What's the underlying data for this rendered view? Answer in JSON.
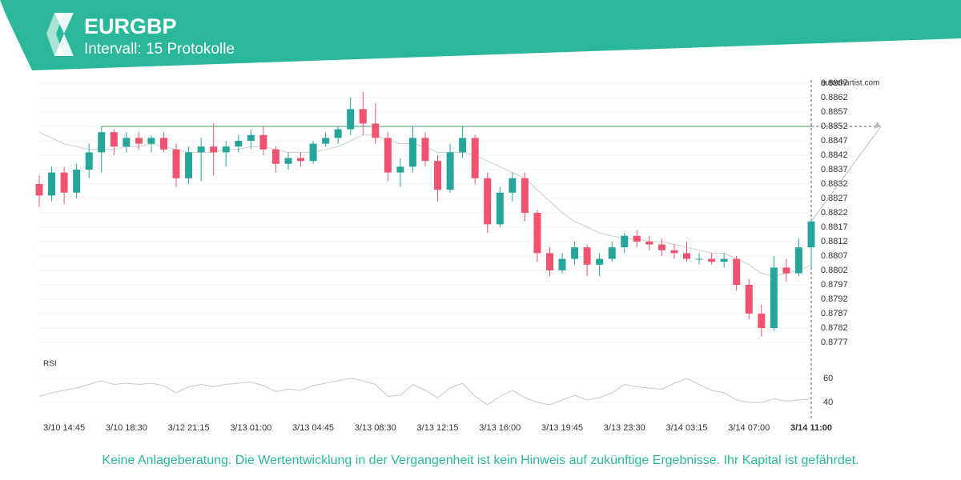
{
  "chart_data": {
    "type": "candlestick",
    "title": "EURGBP",
    "subtitle": "Intervall: 15 Protokolle",
    "brand": "autochartist.com",
    "disclaimer": "Keine Anlageberatung. Die Wertentwicklung in der Vergangenheit ist kein Hinweis auf zukünftige Ergebnisse. Ihr Kapital ist gefährdet.",
    "categories": [
      null,
      null,
      "3/10 14:45",
      null,
      null,
      null,
      null,
      "3/10 18:30",
      null,
      null,
      null,
      null,
      "3/12 21:15",
      null,
      null,
      null,
      null,
      "3/13 01:00",
      null,
      null,
      null,
      null,
      "3/13 04:45",
      null,
      null,
      null,
      null,
      "3/13 08:30",
      null,
      null,
      null,
      null,
      "3/13 12:15",
      null,
      null,
      null,
      null,
      "3/13 16:00",
      null,
      null,
      null,
      null,
      "3/13 19:45",
      null,
      null,
      null,
      null,
      "3/13 23:30",
      null,
      null,
      null,
      null,
      "3/14 03:15",
      null,
      null,
      null,
      null,
      "3/14 07:00",
      null,
      null,
      null,
      null,
      "3/14 11:00"
    ],
    "open": [
      0.8832,
      0.8828,
      0.8836,
      0.8829,
      0.8837,
      0.8843,
      0.885,
      0.8845,
      0.8848,
      0.8846,
      0.8848,
      0.8844,
      0.8834,
      0.8843,
      0.8845,
      0.8843,
      0.8845,
      0.8847,
      0.8849,
      0.8844,
      0.8839,
      0.8841,
      0.884,
      0.8846,
      0.8848,
      0.8851,
      0.8858,
      0.8853,
      0.8848,
      0.8836,
      0.8838,
      0.8848,
      0.884,
      0.883,
      0.8843,
      0.8848,
      0.8834,
      0.8818,
      0.8829,
      0.8834,
      0.8822,
      0.8808,
      0.8802,
      0.8806,
      0.881,
      0.8804,
      0.8806,
      0.881,
      0.8814,
      0.8812,
      0.8811,
      0.8809,
      0.8808,
      0.8806,
      0.8806,
      0.8805,
      0.8806,
      0.8797,
      0.8787,
      0.8782,
      0.8803,
      0.8801,
      0.881
    ],
    "high": [
      0.8835,
      0.8838,
      0.8838,
      0.8839,
      0.8846,
      0.8852,
      0.8851,
      0.885,
      0.885,
      0.8849,
      0.885,
      0.8846,
      0.8845,
      0.8848,
      0.8853,
      0.8847,
      0.8849,
      0.8851,
      0.8852,
      0.8845,
      0.8843,
      0.8843,
      0.8847,
      0.885,
      0.8852,
      0.8862,
      0.8864,
      0.886,
      0.885,
      0.8841,
      0.8852,
      0.885,
      0.8842,
      0.8846,
      0.8852,
      0.8849,
      0.8836,
      0.8831,
      0.8836,
      0.8836,
      0.8823,
      0.881,
      0.8808,
      0.8812,
      0.8811,
      0.8808,
      0.8812,
      0.8815,
      0.8816,
      0.8814,
      0.8813,
      0.8811,
      0.8812,
      0.8808,
      0.8808,
      0.8808,
      0.8807,
      0.8799,
      0.879,
      0.8807,
      0.8806,
      0.8813,
      0.882
    ],
    "low": [
      0.8824,
      0.8826,
      0.8825,
      0.8827,
      0.8834,
      0.8836,
      0.8842,
      0.8843,
      0.8844,
      0.8843,
      0.8843,
      0.8831,
      0.8832,
      0.8833,
      0.8835,
      0.8838,
      0.8843,
      0.8844,
      0.8842,
      0.8836,
      0.8837,
      0.8838,
      0.8839,
      0.8845,
      0.8846,
      0.8849,
      0.8849,
      0.8846,
      0.8833,
      0.8831,
      0.8836,
      0.8838,
      0.8826,
      0.8829,
      0.8841,
      0.8832,
      0.8815,
      0.8817,
      0.8826,
      0.8819,
      0.8805,
      0.88,
      0.8801,
      0.8804,
      0.88,
      0.88,
      0.8805,
      0.8808,
      0.881,
      0.8809,
      0.8807,
      0.8806,
      0.8805,
      0.8804,
      0.8804,
      0.8803,
      0.8795,
      0.8785,
      0.8779,
      0.8781,
      0.8798,
      0.88,
      0.8803
    ],
    "close": [
      0.8828,
      0.8836,
      0.8829,
      0.8837,
      0.8843,
      0.885,
      0.8845,
      0.8848,
      0.8846,
      0.8848,
      0.8844,
      0.8834,
      0.8843,
      0.8845,
      0.8843,
      0.8845,
      0.8847,
      0.8849,
      0.8844,
      0.8839,
      0.8841,
      0.884,
      0.8846,
      0.8848,
      0.8851,
      0.8858,
      0.8853,
      0.8848,
      0.8836,
      0.8838,
      0.8848,
      0.884,
      0.883,
      0.8843,
      0.8848,
      0.8834,
      0.8818,
      0.8829,
      0.8834,
      0.8822,
      0.8808,
      0.8802,
      0.8806,
      0.881,
      0.8804,
      0.8806,
      0.881,
      0.8814,
      0.8812,
      0.8811,
      0.8809,
      0.8808,
      0.8806,
      0.8806,
      0.8805,
      0.8806,
      0.8797,
      0.8787,
      0.8782,
      0.8803,
      0.8801,
      0.881,
      0.8819
    ],
    "up_color": "#26a69a",
    "down_color": "#ef5370",
    "moving_average": {
      "color": "#cccccc",
      "values": [
        0.885,
        0.8848,
        0.8846,
        0.8845,
        0.8844,
        0.8844,
        0.8844,
        0.8845,
        0.8845,
        0.8846,
        0.8845,
        0.8844,
        0.8843,
        0.8843,
        0.8843,
        0.8844,
        0.8844,
        0.8845,
        0.8845,
        0.8844,
        0.8843,
        0.8843,
        0.8843,
        0.8844,
        0.8845,
        0.8847,
        0.8849,
        0.8849,
        0.8847,
        0.8846,
        0.8846,
        0.8845,
        0.8843,
        0.8843,
        0.8843,
        0.8842,
        0.884,
        0.8838,
        0.8836,
        0.8834,
        0.883,
        0.8826,
        0.8822,
        0.8819,
        0.8817,
        0.8815,
        0.8814,
        0.8813,
        0.8813,
        0.8812,
        0.8812,
        0.8811,
        0.881,
        0.8809,
        0.8808,
        0.8808,
        0.8806,
        0.8804,
        0.8801,
        0.88,
        0.8801,
        0.8802,
        0.8804
      ]
    },
    "level": 0.8852,
    "level_color": "#7fbf9a",
    "ylim": [
      0.8777,
      0.8867
    ],
    "yticks": [
      0.8867,
      0.8862,
      0.8857,
      0.8852,
      0.8847,
      0.8842,
      0.8837,
      0.8832,
      0.8827,
      0.8822,
      0.8817,
      0.8812,
      0.8807,
      0.8802,
      0.8797,
      0.8792,
      0.8787,
      0.8782,
      0.8777
    ],
    "rsi": {
      "label": "RSI",
      "color": "#c8c8c8",
      "ylim": [
        35,
        65
      ],
      "yticks": [
        60,
        40
      ],
      "values": [
        45,
        48,
        50,
        52,
        55,
        58,
        55,
        56,
        55,
        56,
        54,
        48,
        53,
        55,
        53,
        55,
        56,
        57,
        54,
        49,
        51,
        50,
        54,
        56,
        58,
        60,
        58,
        55,
        45,
        46,
        55,
        50,
        44,
        52,
        56,
        45,
        38,
        45,
        50,
        44,
        40,
        38,
        42,
        46,
        42,
        44,
        48,
        55,
        53,
        52,
        51,
        56,
        60,
        55,
        50,
        48,
        42,
        40,
        40,
        43,
        41,
        42,
        43
      ]
    }
  }
}
